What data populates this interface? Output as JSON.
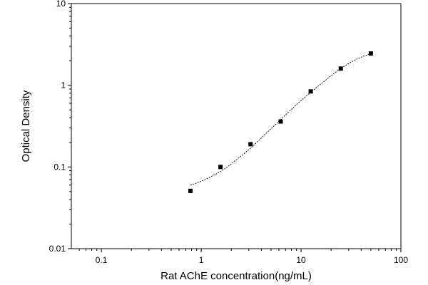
{
  "chart_data": {
    "type": "scatter",
    "title": "",
    "xlabel": "Rat AChE concentration(ng/mL)",
    "ylabel": "Optical Density",
    "x_scale": "log",
    "y_scale": "log",
    "xlim": [
      0.05,
      100
    ],
    "ylim": [
      0.01,
      10
    ],
    "x_ticks": [
      0.1,
      1,
      10,
      100
    ],
    "x_tick_labels": [
      "0.1",
      "1",
      "10",
      "100"
    ],
    "y_ticks": [
      0.01,
      0.1,
      1,
      10
    ],
    "y_tick_labels": [
      "0.01",
      "0.1",
      "1",
      "10"
    ],
    "grid": false,
    "legend": "none",
    "series": [
      {
        "marker": "square",
        "color": "#000000",
        "x": [
          0.78,
          1.56,
          3.12,
          6.25,
          12.5,
          25,
          50
        ],
        "y": [
          0.051,
          0.1,
          0.19,
          0.36,
          0.84,
          1.6,
          2.45
        ]
      }
    ],
    "fit_curve": {
      "style": "dashed",
      "color": "#000000",
      "x": [
        0.78,
        1.0,
        1.56,
        2.2,
        3.12,
        4.5,
        6.25,
        9.0,
        12.5,
        18,
        25,
        35,
        50
      ],
      "y": [
        0.06,
        0.067,
        0.088,
        0.12,
        0.17,
        0.26,
        0.38,
        0.58,
        0.82,
        1.18,
        1.6,
        2.05,
        2.45
      ]
    }
  }
}
